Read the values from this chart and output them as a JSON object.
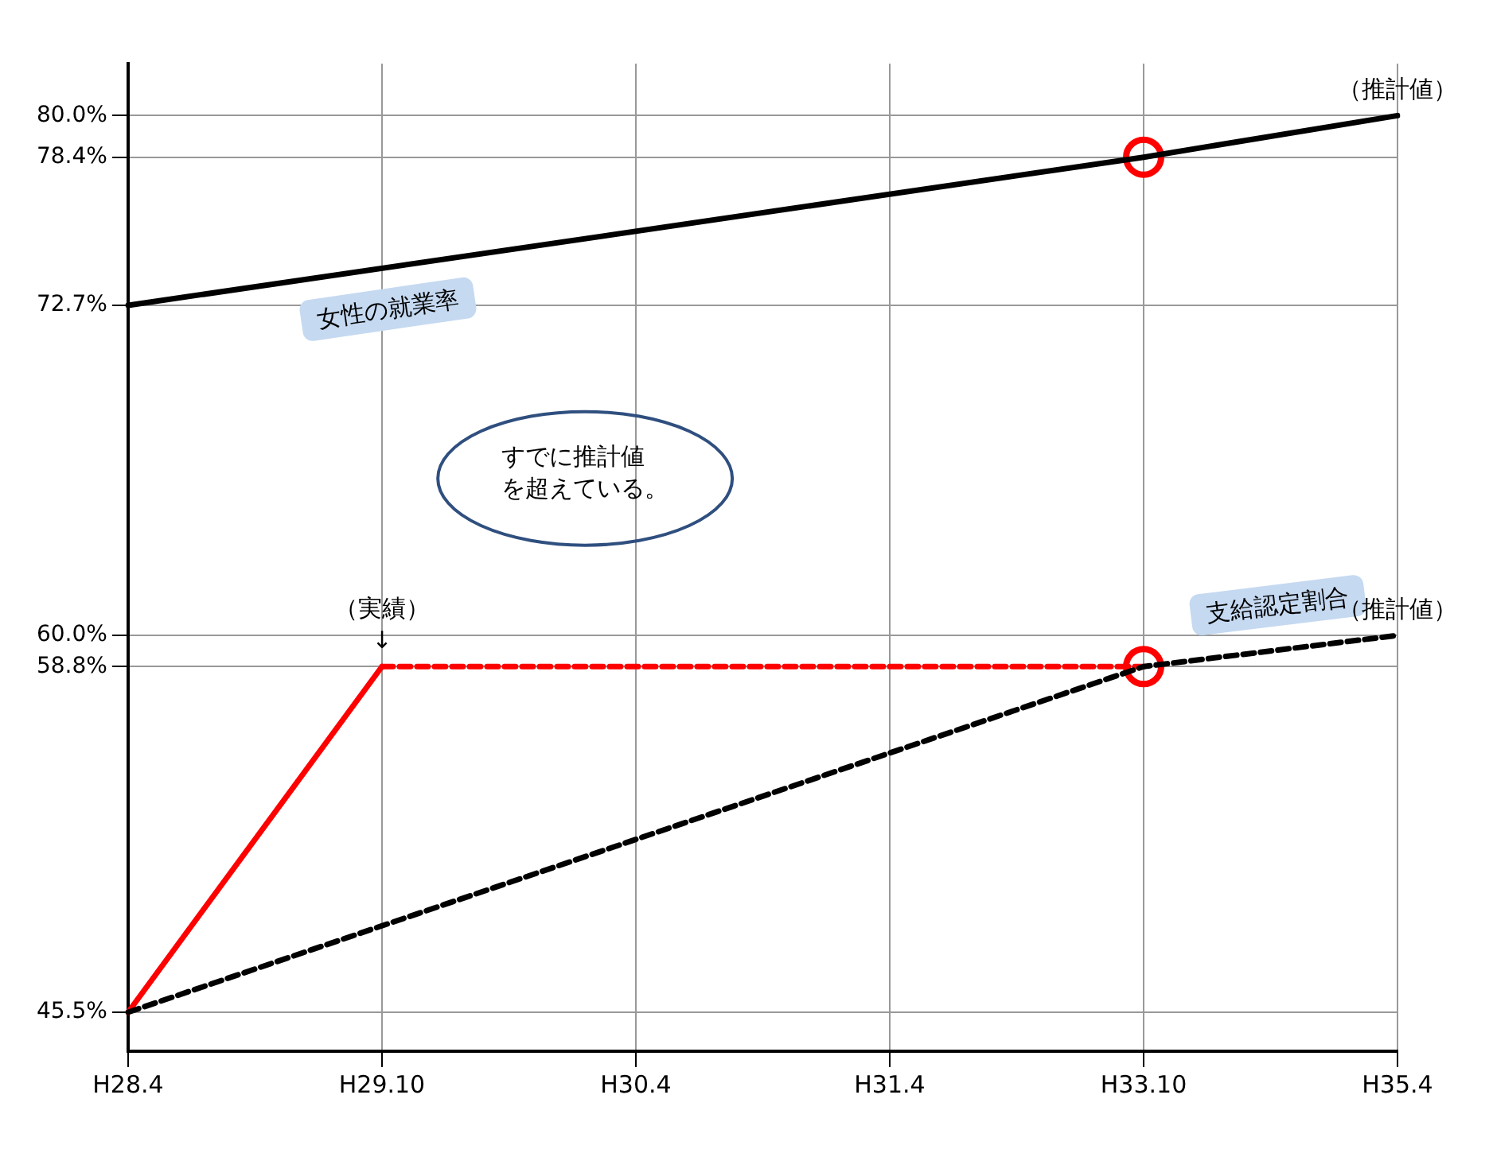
{
  "chart_data": {
    "type": "line",
    "categories": [
      "H28.4",
      "H29.10",
      "H30.4",
      "H31.4",
      "H33.10",
      "H35.4"
    ],
    "ylim": [
      44,
      82
    ],
    "yticks": [
      {
        "value": 45.5,
        "label": "45.5%"
      },
      {
        "value": 58.8,
        "label": "58.8%"
      },
      {
        "value": 60.0,
        "label": "60.0%"
      },
      {
        "value": 72.7,
        "label": "72.7%"
      },
      {
        "value": 78.4,
        "label": "78.4%"
      },
      {
        "value": 80.0,
        "label": "80.0%"
      }
    ],
    "grid": true,
    "legend": false,
    "series": [
      {
        "name": "女性の就業率",
        "color": "#000000",
        "line_style": "solid",
        "marker": "none",
        "values": [
          72.7,
          null,
          null,
          null,
          78.4,
          80.0
        ]
      },
      {
        "name": "支給認定割合",
        "color": "#000000",
        "line_style": "dashed",
        "marker": "none",
        "values": [
          45.5,
          null,
          null,
          null,
          58.8,
          60.0
        ]
      },
      {
        "color": "#ff0000",
        "line_style": "solid",
        "marker": "none",
        "values": [
          45.5,
          58.8,
          null,
          null,
          null,
          null
        ]
      },
      {
        "color": "#ff0000",
        "line_style": "dashed",
        "marker": "none",
        "values": [
          null,
          58.8,
          null,
          null,
          58.8,
          null
        ]
      },
      {
        "type": "scatter",
        "color": "#ff0000",
        "marker": "circle",
        "x": [
          "H33.10",
          "H33.10"
        ],
        "values": [
          78.4,
          58.8
        ]
      }
    ],
    "annotations": [
      {
        "text": "（推計値）",
        "x": "H35.4",
        "y": 80.0
      },
      {
        "text": "（推計値）",
        "x": "H35.4",
        "y": 60.0
      },
      {
        "text": "（実績）",
        "x": "H29.10",
        "y": 58.8
      },
      {
        "text": "↓",
        "x": "H29.10",
        "y": 58.8
      },
      "すでに推計値を超えている。"
    ]
  }
}
